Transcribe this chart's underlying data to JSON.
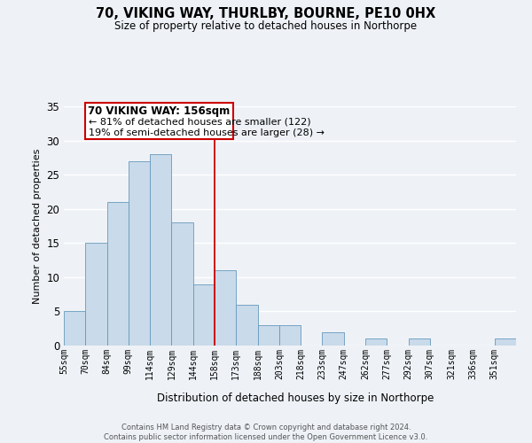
{
  "title": "70, VIKING WAY, THURLBY, BOURNE, PE10 0HX",
  "subtitle": "Size of property relative to detached houses in Northorpe",
  "xlabel": "Distribution of detached houses by size in Northorpe",
  "ylabel": "Number of detached properties",
  "bar_color": "#c9daea",
  "bar_edge_color": "#6699bb",
  "background_color": "#eef2f7",
  "grid_color": "#ffffff",
  "tick_labels": [
    "55sqm",
    "70sqm",
    "84sqm",
    "99sqm",
    "114sqm",
    "129sqm",
    "144sqm",
    "158sqm",
    "173sqm",
    "188sqm",
    "203sqm",
    "218sqm",
    "233sqm",
    "247sqm",
    "262sqm",
    "277sqm",
    "292sqm",
    "307sqm",
    "321sqm",
    "336sqm",
    "351sqm"
  ],
  "bar_values": [
    5,
    15,
    21,
    27,
    28,
    18,
    9,
    11,
    6,
    3,
    3,
    0,
    2,
    0,
    1,
    0,
    1,
    0,
    0,
    0,
    1
  ],
  "vline_x": 7,
  "vline_color": "#cc0000",
  "annotation_title": "70 VIKING WAY: 156sqm",
  "annotation_line1": "← 81% of detached houses are smaller (122)",
  "annotation_line2": "19% of semi-detached houses are larger (28) →",
  "annotation_box_color": "#cc0000",
  "annotation_bg_color": "#ffffff",
  "ylim": [
    0,
    35
  ],
  "yticks": [
    0,
    5,
    10,
    15,
    20,
    25,
    30,
    35
  ],
  "footer_line1": "Contains HM Land Registry data © Crown copyright and database right 2024.",
  "footer_line2": "Contains public sector information licensed under the Open Government Licence v3.0."
}
